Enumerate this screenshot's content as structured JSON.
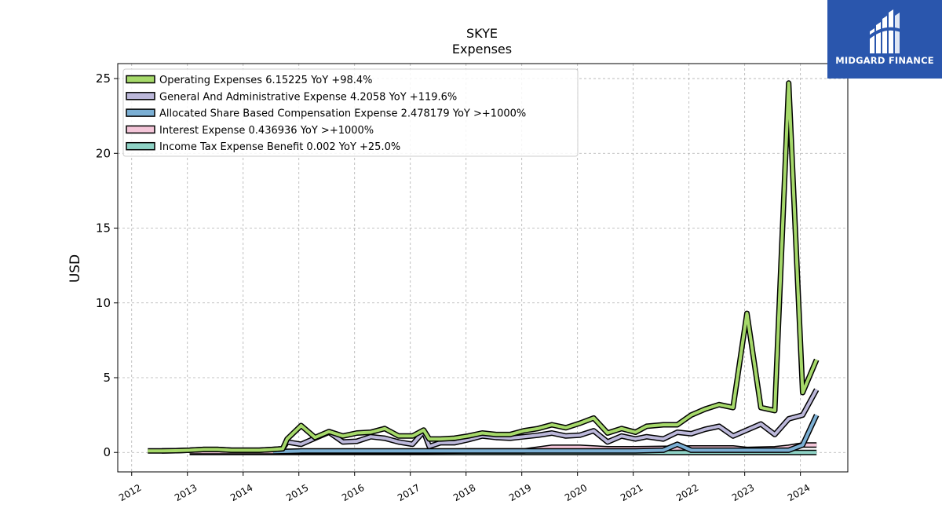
{
  "chart_data": {
    "type": "line",
    "title": "SKYE",
    "subtitle": "Expenses",
    "ylabel": "USD",
    "xlabel": "",
    "ylim": [
      -1.3,
      26
    ],
    "xlim": [
      2011.75,
      2024.85
    ],
    "yticks": [
      0,
      5,
      10,
      15,
      20,
      25
    ],
    "xticks": [
      "2012",
      "2013",
      "2014",
      "2015",
      "2016",
      "2017",
      "2018",
      "2019",
      "2020",
      "2021",
      "2022",
      "2023",
      "2024"
    ],
    "grid": true,
    "legend_position": "top-left",
    "series": [
      {
        "name": "Operating Expenses",
        "legend": "Operating Expenses  6.15225 YoY +98.4%",
        "color": "#a6d96a",
        "points": [
          [
            2012.29,
            0.1
          ],
          [
            2012.54,
            0.1
          ],
          [
            2012.79,
            0.12
          ],
          [
            2013.04,
            0.15
          ],
          [
            2013.29,
            0.2
          ],
          [
            2013.54,
            0.2
          ],
          [
            2013.79,
            0.15
          ],
          [
            2014.04,
            0.15
          ],
          [
            2014.29,
            0.15
          ],
          [
            2014.54,
            0.2
          ],
          [
            2014.71,
            0.25
          ],
          [
            2014.79,
            0.9
          ],
          [
            2015.04,
            1.8
          ],
          [
            2015.29,
            1.0
          ],
          [
            2015.54,
            1.4
          ],
          [
            2015.79,
            1.1
          ],
          [
            2016.04,
            1.3
          ],
          [
            2016.29,
            1.35
          ],
          [
            2016.54,
            1.6
          ],
          [
            2016.79,
            1.1
          ],
          [
            2017.04,
            1.1
          ],
          [
            2017.24,
            1.5
          ],
          [
            2017.34,
            0.9
          ],
          [
            2017.54,
            0.9
          ],
          [
            2017.79,
            0.95
          ],
          [
            2018.04,
            1.1
          ],
          [
            2018.29,
            1.3
          ],
          [
            2018.54,
            1.2
          ],
          [
            2018.79,
            1.2
          ],
          [
            2019.04,
            1.45
          ],
          [
            2019.29,
            1.6
          ],
          [
            2019.54,
            1.85
          ],
          [
            2019.79,
            1.65
          ],
          [
            2020.04,
            1.95
          ],
          [
            2020.29,
            2.3
          ],
          [
            2020.54,
            1.3
          ],
          [
            2020.79,
            1.6
          ],
          [
            2021.04,
            1.35
          ],
          [
            2021.24,
            1.75
          ],
          [
            2021.54,
            1.85
          ],
          [
            2021.79,
            1.85
          ],
          [
            2022.04,
            2.5
          ],
          [
            2022.29,
            2.9
          ],
          [
            2022.54,
            3.2
          ],
          [
            2022.79,
            3.0
          ],
          [
            2023.04,
            9.3
          ],
          [
            2023.29,
            3.0
          ],
          [
            2023.54,
            2.8
          ],
          [
            2023.79,
            24.7
          ],
          [
            2024.04,
            4.0
          ],
          [
            2024.29,
            6.2
          ]
        ]
      },
      {
        "name": "General And Administrative Expense",
        "legend": "General And Administrative Expense  4.2058 YoY +119.6%",
        "color": "#bcb8da",
        "points": [
          [
            2012.54,
            0.1
          ],
          [
            2012.79,
            0.12
          ],
          [
            2013.04,
            0.15
          ],
          [
            2013.29,
            0.2
          ],
          [
            2013.54,
            0.2
          ],
          [
            2013.79,
            0.15
          ],
          [
            2014.04,
            0.15
          ],
          [
            2014.29,
            0.15
          ],
          [
            2014.54,
            0.2
          ],
          [
            2014.71,
            0.25
          ],
          [
            2014.79,
            0.7
          ],
          [
            2015.04,
            0.55
          ],
          [
            2015.29,
            0.95
          ],
          [
            2015.54,
            1.35
          ],
          [
            2015.79,
            0.7
          ],
          [
            2016.04,
            0.75
          ],
          [
            2016.29,
            1.05
          ],
          [
            2016.54,
            0.95
          ],
          [
            2016.79,
            0.7
          ],
          [
            2017.04,
            0.55
          ],
          [
            2017.24,
            1.4
          ],
          [
            2017.34,
            0.4
          ],
          [
            2017.54,
            0.65
          ],
          [
            2017.79,
            0.65
          ],
          [
            2018.04,
            0.85
          ],
          [
            2018.29,
            1.1
          ],
          [
            2018.54,
            1.0
          ],
          [
            2018.79,
            0.95
          ],
          [
            2019.04,
            1.05
          ],
          [
            2019.29,
            1.15
          ],
          [
            2019.54,
            1.3
          ],
          [
            2019.79,
            1.1
          ],
          [
            2020.04,
            1.15
          ],
          [
            2020.29,
            1.45
          ],
          [
            2020.54,
            0.7
          ],
          [
            2020.79,
            1.1
          ],
          [
            2021.04,
            0.9
          ],
          [
            2021.24,
            1.05
          ],
          [
            2021.54,
            0.9
          ],
          [
            2021.79,
            1.35
          ],
          [
            2022.04,
            1.25
          ],
          [
            2022.29,
            1.55
          ],
          [
            2022.54,
            1.75
          ],
          [
            2022.79,
            1.1
          ],
          [
            2023.04,
            1.5
          ],
          [
            2023.29,
            1.9
          ],
          [
            2023.54,
            1.2
          ],
          [
            2023.79,
            2.25
          ],
          [
            2024.04,
            2.5
          ],
          [
            2024.29,
            4.2
          ]
        ]
      },
      {
        "name": "Allocated Share Based Compensation Expense",
        "legend": "Allocated Share Based Compensation Expense  2.478179 YoY >+1000%",
        "color": "#7bafd4",
        "points": [
          [
            2014.54,
            0.05
          ],
          [
            2015.04,
            0.1
          ],
          [
            2016.04,
            0.1
          ],
          [
            2017.04,
            0.1
          ],
          [
            2018.04,
            0.1
          ],
          [
            2019.04,
            0.1
          ],
          [
            2020.04,
            0.1
          ],
          [
            2021.04,
            0.1
          ],
          [
            2021.54,
            0.15
          ],
          [
            2021.79,
            0.55
          ],
          [
            2022.04,
            0.15
          ],
          [
            2022.54,
            0.15
          ],
          [
            2023.04,
            0.15
          ],
          [
            2023.54,
            0.15
          ],
          [
            2023.79,
            0.15
          ],
          [
            2024.04,
            0.5
          ],
          [
            2024.29,
            2.5
          ]
        ]
      },
      {
        "name": "Interest Expense",
        "legend": "Interest Expense  0.436936 YoY >+1000%",
        "color": "#f4c6d9",
        "points": [
          [
            2013.04,
            0.05
          ],
          [
            2014.04,
            0.05
          ],
          [
            2015.04,
            0.05
          ],
          [
            2016.04,
            0.05
          ],
          [
            2017.04,
            0.05
          ],
          [
            2018.04,
            0.1
          ],
          [
            2019.04,
            0.1
          ],
          [
            2019.54,
            0.35
          ],
          [
            2020.04,
            0.35
          ],
          [
            2020.54,
            0.25
          ],
          [
            2021.04,
            0.25
          ],
          [
            2022.04,
            0.3
          ],
          [
            2022.79,
            0.3
          ],
          [
            2023.04,
            0.2
          ],
          [
            2023.54,
            0.25
          ],
          [
            2023.79,
            0.35
          ],
          [
            2024.04,
            0.5
          ],
          [
            2024.29,
            0.5
          ]
        ]
      },
      {
        "name": "Income Tax Expense Benefit",
        "legend": "Income Tax Expense Benefit  0.002 YoY +25.0%",
        "color": "#8fd3c6",
        "points": [
          [
            2013.04,
            0.0
          ],
          [
            2014.04,
            0.0
          ],
          [
            2015.04,
            0.0
          ],
          [
            2016.04,
            0.0
          ],
          [
            2017.04,
            0.0
          ],
          [
            2018.04,
            0.0
          ],
          [
            2019.04,
            0.0
          ],
          [
            2020.04,
            0.0
          ],
          [
            2021.04,
            0.0
          ],
          [
            2022.04,
            0.0
          ],
          [
            2023.04,
            0.0
          ],
          [
            2024.04,
            0.0
          ],
          [
            2024.29,
            0.0
          ]
        ]
      }
    ]
  },
  "logo": {
    "text": "MIDGARD FINANCE",
    "background": "#2a56ad",
    "icon": "midgard-logo-icon"
  }
}
